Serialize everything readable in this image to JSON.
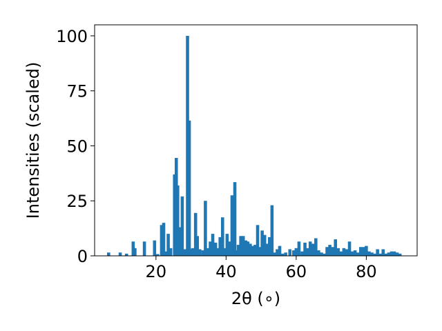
{
  "chart_data": {
    "type": "bar",
    "title": "",
    "xlabel": "2θ (∘)",
    "ylabel": "Intensities (scaled)",
    "xlim": [
      2.5,
      94.5
    ],
    "ylim": [
      0,
      105
    ],
    "xticks": [
      20,
      40,
      60,
      80
    ],
    "yticks": [
      0,
      25,
      50,
      75,
      100
    ],
    "grid": false,
    "legend": "none",
    "bar_color": "#1f77b4",
    "bar_width": 0.9,
    "x": [
      6.5,
      9.8,
      11.6,
      13.5,
      14.0,
      16.7,
      19.6,
      20.5,
      21.6,
      22.2,
      22.8,
      23.5,
      24.2,
      25.3,
      25.8,
      26.2,
      26.8,
      27.5,
      28.2,
      29.0,
      29.5,
      29.9,
      30.5,
      31.3,
      31.8,
      32.5,
      33.4,
      34.1,
      34.7,
      35.5,
      36.2,
      37.0,
      37.6,
      38.3,
      39.0,
      39.6,
      40.3,
      41.0,
      41.7,
      42.5,
      43.0,
      43.5,
      44.2,
      44.9,
      45.6,
      46.2,
      46.9,
      47.6,
      48.3,
      49.0,
      49.5,
      50.3,
      51.0,
      51.7,
      52.4,
      53.1,
      53.8,
      54.6,
      55.3,
      56.1,
      57.0,
      58.2,
      59.3,
      60.0,
      60.8,
      61.7,
      62.5,
      63.3,
      64.0,
      64.8,
      65.6,
      66.4,
      67.2,
      68.0,
      68.8,
      69.6,
      70.4,
      71.2,
      72.0,
      72.8,
      73.6,
      74.4,
      75.2,
      76.0,
      76.8,
      77.6,
      78.4,
      79.2,
      80.0,
      80.8,
      81.6,
      82.4,
      83.2,
      84.0,
      84.8,
      85.6,
      86.4,
      87.2,
      88.0,
      88.8,
      89.6
    ],
    "values": [
      1.5,
      1.5,
      1.0,
      6.5,
      3.5,
      6.5,
      7.0,
      0.8,
      14.0,
      15.0,
      2.0,
      10.0,
      3.5,
      37.0,
      44.5,
      32.0,
      13.0,
      27.0,
      3.0,
      100.0,
      61.5,
      3.0,
      3.5,
      19.5,
      9.0,
      3.0,
      2.5,
      25.0,
      3.5,
      6.5,
      10.0,
      6.0,
      3.5,
      8.5,
      17.5,
      3.5,
      10.0,
      6.5,
      27.5,
      33.5,
      2.5,
      5.0,
      9.0,
      9.0,
      7.0,
      6.5,
      5.5,
      4.5,
      5.0,
      14.0,
      4.0,
      11.5,
      9.5,
      5.5,
      8.5,
      23.0,
      1.5,
      3.0,
      4.5,
      1.0,
      1.5,
      3.0,
      2.5,
      3.5,
      6.5,
      2.0,
      6.0,
      3.5,
      6.5,
      5.5,
      8.0,
      2.5,
      1.5,
      1.0,
      4.0,
      5.0,
      4.0,
      7.5,
      3.5,
      2.0,
      3.5,
      3.0,
      6.5,
      2.0,
      2.5,
      1.5,
      4.0,
      4.0,
      4.5,
      2.0,
      1.5,
      1.0,
      3.0,
      1.0,
      3.0,
      1.0,
      1.5,
      2.0,
      2.0,
      1.5,
      1.0
    ]
  }
}
